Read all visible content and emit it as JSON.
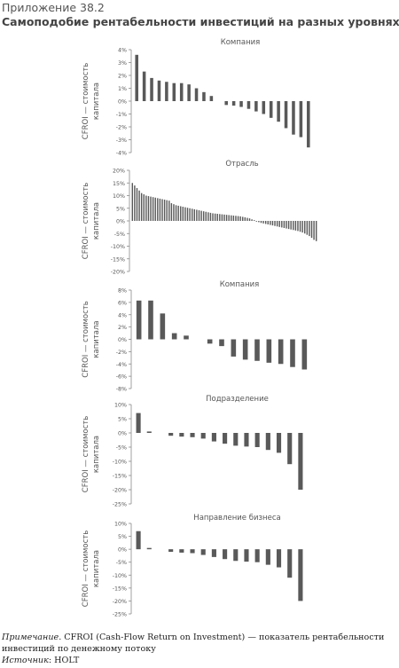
{
  "header": {
    "appendix": "Приложение 38.2",
    "title": "Самоподобие рентабельности инвестиций на разных уровнях"
  },
  "colors": {
    "bar": "#595959",
    "axis": "#8a8a8a",
    "text": "#555555"
  },
  "chart_data": [
    {
      "type": "bar",
      "title": "Компания",
      "ylabel": "CFROI — стоимость капитала",
      "yticks": [
        "4%",
        "3%",
        "2%",
        "1%",
        "0%",
        "-1%",
        "-2%",
        "-3%",
        "-4%"
      ],
      "ylim": [
        -4,
        4
      ],
      "values": [
        3.6,
        2.3,
        1.8,
        1.6,
        1.5,
        1.4,
        1.4,
        1.3,
        1.0,
        0.7,
        0.4,
        null,
        -0.3,
        -0.35,
        -0.45,
        -0.6,
        -0.8,
        -1.0,
        -1.3,
        -1.6,
        -2.1,
        -2.6,
        -2.8,
        -3.6
      ]
    },
    {
      "type": "bar",
      "title": "Отрасль",
      "ylabel": "CFROI — стоимость капитала",
      "yticks": [
        "20%",
        "15%",
        "10%",
        "5%",
        "0%",
        "-5%",
        "-10%",
        "-15%",
        "-20%"
      ],
      "ylim": [
        -20,
        20
      ],
      "dense": true,
      "values": [
        15.0,
        14.0,
        13.0,
        12.0,
        11.0,
        10.5,
        10.0,
        9.8,
        9.6,
        9.4,
        9.2,
        9.0,
        8.8,
        8.6,
        8.4,
        8.2,
        8.0,
        7.0,
        6.6,
        6.2,
        6.0,
        5.8,
        5.6,
        5.4,
        5.2,
        5.0,
        4.8,
        4.6,
        4.4,
        4.2,
        4.0,
        3.8,
        3.6,
        3.4,
        3.2,
        3.0,
        2.9,
        2.8,
        2.7,
        2.6,
        2.5,
        2.4,
        2.3,
        2.2,
        2.1,
        2.0,
        1.9,
        1.8,
        1.6,
        1.4,
        1.2,
        1.0,
        0.6,
        0.3,
        -0.2,
        -0.5,
        -0.8,
        -1.0,
        -1.2,
        -1.4,
        -1.6,
        -1.8,
        -2.0,
        -2.2,
        -2.4,
        -2.6,
        -2.8,
        -3.0,
        -3.2,
        -3.4,
        -3.6,
        -3.8,
        -4.0,
        -4.3,
        -4.6,
        -5.0,
        -5.5,
        -6.0,
        -6.7,
        -7.5,
        -8.0
      ]
    },
    {
      "type": "bar",
      "title": "Компания",
      "ylabel": "CFROI — стоимость капитала",
      "yticks": [
        "8%",
        "6%",
        "4%",
        "2%",
        "0%",
        "-2%",
        "-4%",
        "-6%",
        "-8%"
      ],
      "ylim": [
        -8,
        8
      ],
      "values": [
        6.3,
        6.3,
        4.2,
        1.0,
        0.6,
        null,
        -0.7,
        -1.1,
        -2.8,
        -3.3,
        -3.5,
        -3.8,
        -4.0,
        -4.5,
        -4.9
      ]
    },
    {
      "type": "bar",
      "title": "Подразделение",
      "ylabel": "CFROI — стоимость капитала",
      "yticks": [
        "10%",
        "5%",
        "0%",
        "-5%",
        "-10%",
        "-15%",
        "-20%",
        "-25%"
      ],
      "ylim": [
        -25,
        10
      ],
      "values": [
        7.0,
        0.5,
        null,
        -1.0,
        -1.3,
        -1.5,
        -2.0,
        -3.0,
        -3.8,
        -4.5,
        -4.8,
        -5.0,
        -6.0,
        -7.0,
        -11.0,
        -20.0
      ]
    },
    {
      "type": "bar",
      "title": "Направление бизнеса",
      "ylabel": "CFROI — стоимость капитала",
      "yticks": [
        "10%",
        "5%",
        "0%",
        "-5%",
        "-10%",
        "-15%",
        "-20%",
        "-25%"
      ],
      "ylim": [
        -25,
        10
      ],
      "values": [
        7.0,
        0.5,
        null,
        -1.0,
        -1.3,
        -1.5,
        -2.2,
        -3.0,
        -3.8,
        -4.5,
        -4.8,
        -5.0,
        -6.0,
        -7.0,
        -11.0,
        -20.0
      ]
    }
  ],
  "footer": {
    "note_label": "Примечание",
    "note_text": ". CFROI (Cash-Flow Return on Investment) — показатель рентабельности инвестиций по денежному потоку",
    "source_label": "Источник",
    "source_text": ": HOLT"
  }
}
